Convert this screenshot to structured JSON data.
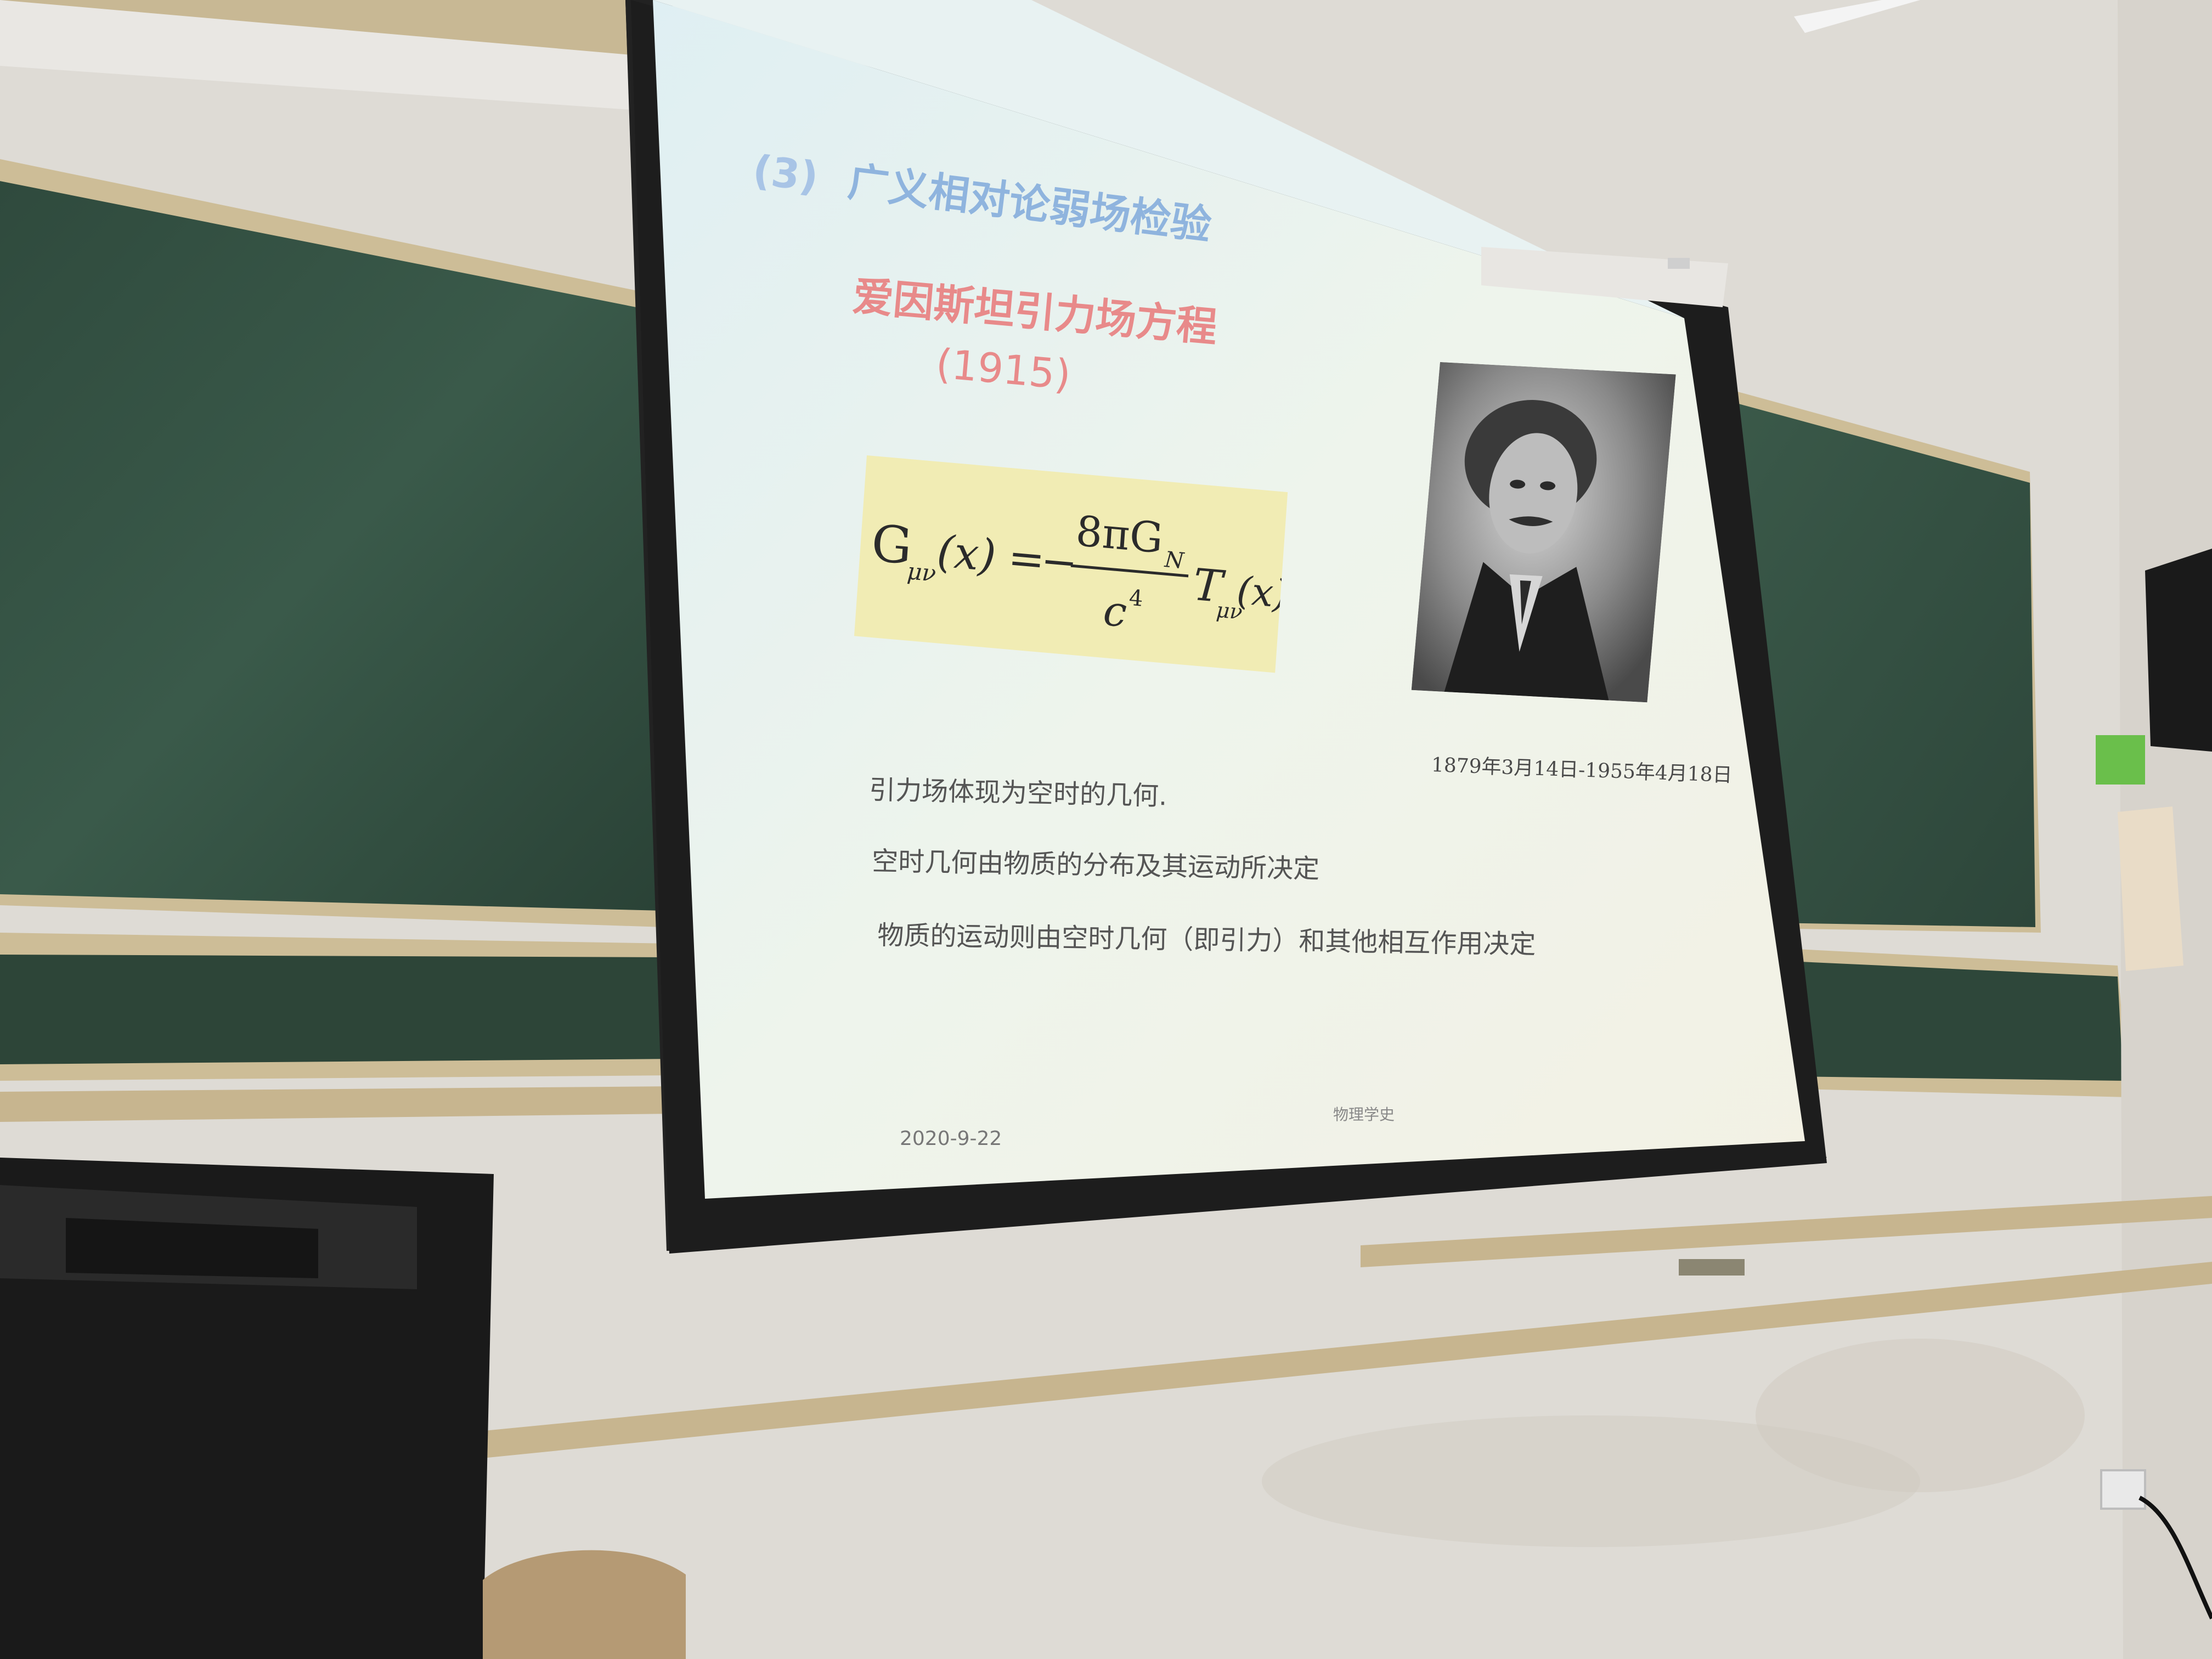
{
  "slide": {
    "title_number": "(3)",
    "title": "广义相对论弱场检验",
    "subtitle_line1": "爱因斯坦引力场方程",
    "subtitle_line2": "(1915)",
    "equation": {
      "lhs": "G",
      "lhs_sub": "μν",
      "lhs_arg": "(x)",
      "equals": "=",
      "minus": "−",
      "numerator": "8πG",
      "numerator_sub": "N",
      "denominator": "c",
      "denominator_sup": "4",
      "rhs": "T",
      "rhs_sub": "μν",
      "rhs_arg": "(x)"
    },
    "portrait_caption": "1879年3月14日-1955年4月18日",
    "body_lines": [
      "引力场体现为空时的几何.",
      "空时几何由物质的分布及其运动所决定",
      "物质的运动则由空时几何（即引力）和其他相互作用决定"
    ],
    "footer_date": "2020-9-22",
    "footer_course": "物理学史"
  },
  "colors": {
    "screen": "#eef3ee",
    "title": "#8fb4de",
    "subtitle": "#e88a8a",
    "equation_bg": "#f1ecb4",
    "chalkboard": "#2e4639",
    "wall": "#e4e2de"
  }
}
